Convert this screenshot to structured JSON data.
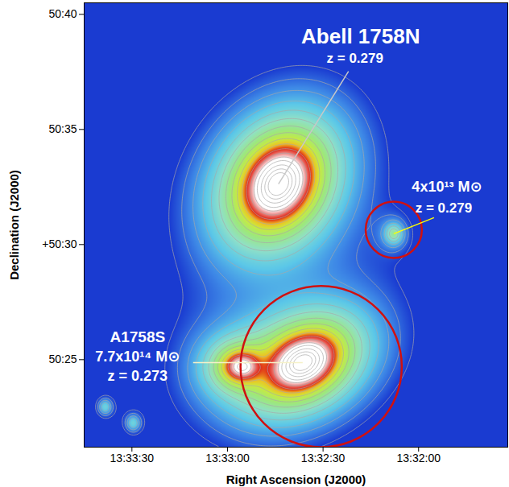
{
  "chart_data": {
    "type": "image",
    "xlabel": "Right Ascension (J2000)",
    "ylabel": "Declination (J2000)",
    "xlim": [
      48825,
      48692
    ],
    "ylim": [
      3021.2,
      3040.5
    ],
    "xticks": [
      {
        "value": 48810,
        "label": "13:33:30"
      },
      {
        "value": 48780,
        "label": "13:33:00"
      },
      {
        "value": 48750,
        "label": "13:32:30"
      },
      {
        "value": 48720,
        "label": "13:32:00"
      }
    ],
    "yticks": [
      {
        "value": 3040,
        "label": "50:40"
      },
      {
        "value": 3035,
        "label": "50:35"
      },
      {
        "value": 3030,
        "label": "+50:30"
      },
      {
        "value": 3025,
        "label": "50:25"
      }
    ],
    "color_stops": [
      -2.95,
      -2.7,
      -2.45,
      -2.2,
      -1.95,
      -1.75,
      -1.6,
      -1.45,
      -1.25,
      -1.1
    ],
    "colors": [
      "#1a3bd1",
      "#3d86e6",
      "#5cc8e8",
      "#8fe0c8",
      "#9ee87a",
      "#c8ea40",
      "#f0c020",
      "#e02818",
      "#f0a0a0",
      "#ffffff"
    ],
    "contour_levels": [
      -2.95,
      -2.8,
      -2.65,
      -2.5,
      -2.35,
      -2.2,
      -2.05,
      -1.9,
      -1.75,
      -1.6,
      -1.45,
      -1.3,
      -1.15,
      -1.0,
      -0.8,
      -0.6,
      -0.4
    ],
    "components": [
      {
        "labels": [
          "Abell 1758N",
          "z = 0.279"
        ],
        "ra": 48764.0,
        "dec": 3032.63,
        "amplitude": 1,
        "core_radius_arcmin": 0.6,
        "axis_ratio": 0.8,
        "angle_deg": 40
      },
      {
        "labels": [
          "4x10¹³ M⊙",
          "z = 0.279"
        ],
        "ra": 48727.8,
        "dec": 3030.47,
        "amplitude": 0.008,
        "core_radius_arcmin": 0.4,
        "axis_ratio": 1,
        "angle_deg": 0
      },
      {
        "labels": [
          "A1758S",
          "7.7x10¹⁴ M⊙",
          "z = 0.273"
        ],
        "ra": 48756.4,
        "dec": 3024.87,
        "amplitude": 0.85,
        "core_radius_arcmin": 0.6,
        "axis_ratio": 0.65,
        "angle_deg": 20
      },
      {
        "ra": 48775.4,
        "dec": 3024.7,
        "amplitude": 0.12,
        "core_radius_arcmin": 0.6,
        "axis_ratio": 0.7,
        "angle_deg": 0
      },
      {
        "ra": 48818.4,
        "dec": 3022.95,
        "amplitude": 0.004,
        "core_radius_arcmin": 0.35,
        "axis_ratio": 1,
        "angle_deg": 0
      },
      {
        "ra": 48809.6,
        "dec": 3022.25,
        "amplitude": 0.004,
        "core_radius_arcmin": 0.35,
        "axis_ratio": 1,
        "angle_deg": 0
      }
    ],
    "circles": [
      {
        "ra": 48727.8,
        "dec": 3030.64,
        "radius_arcmin": 1.22,
        "color": "#d01010"
      },
      {
        "ra": 48750.6,
        "dec": 3024.7,
        "radius_arcmin": 3.5,
        "color": "#d01010"
      }
    ]
  }
}
